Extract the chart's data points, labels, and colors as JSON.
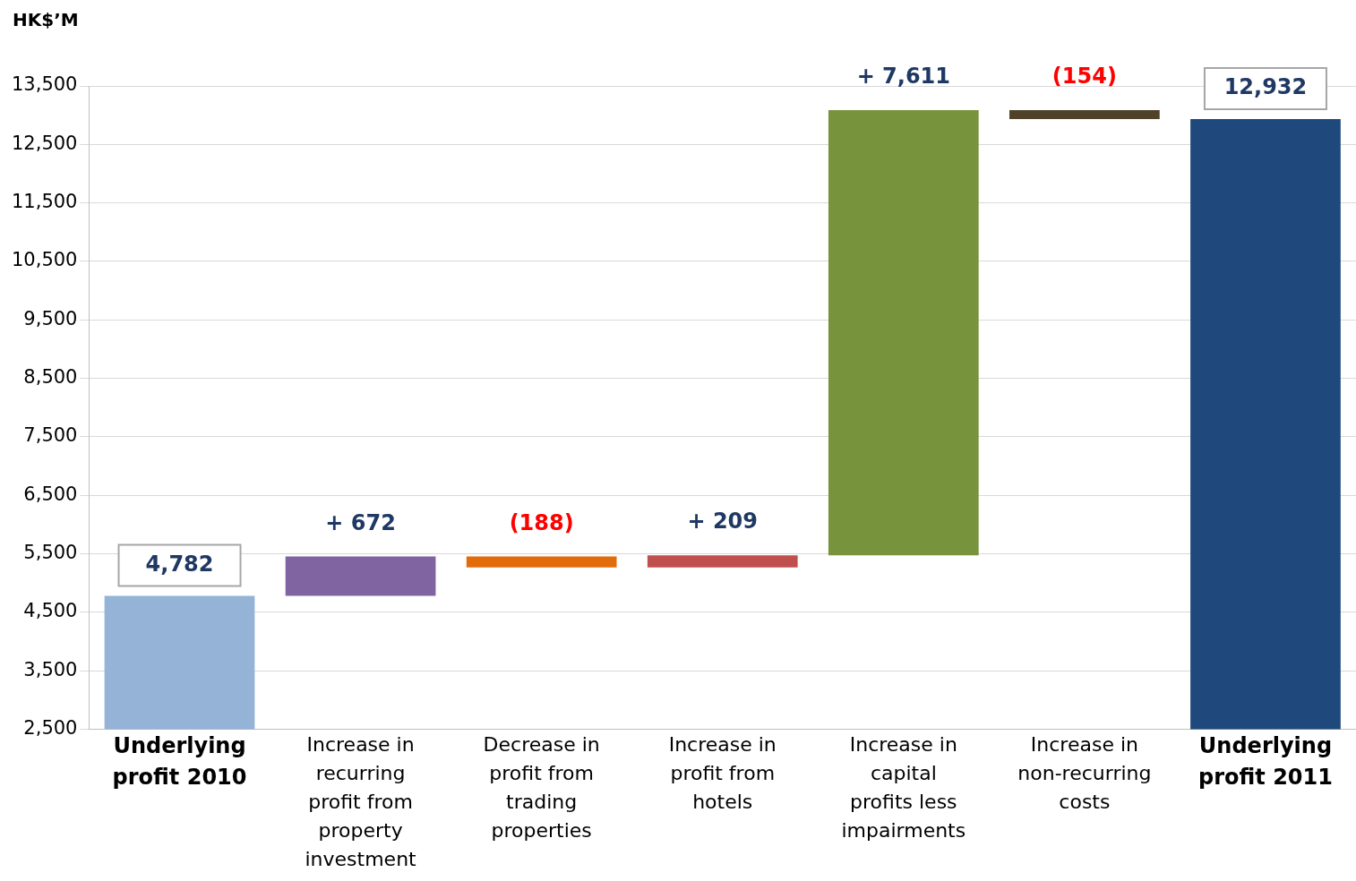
{
  "chart_data": {
    "type": "bar",
    "ylabel": "HK$’M",
    "categories": [
      "Underlying profit 2010",
      "Increase in recurring profit from property investment",
      "Decrease in profit from trading properties",
      "Increase in profit from hotels",
      "Increase in capital profits less impairments",
      "Increase in non-recurring costs",
      "Underlying profit 2011"
    ],
    "values": [
      4782,
      672,
      -188,
      209,
      7611,
      -154,
      12932
    ],
    "base": [
      null,
      4782,
      5454,
      5266,
      5475,
      13086,
      null
    ],
    "colors": [
      "#95b3d7",
      "#8064a2",
      "#e36c0a",
      "#c0504d",
      "#77933c",
      "#4f4228",
      "#1f497d"
    ],
    "value_labels": [
      "4,782",
      "+ 672",
      "(188)",
      "+ 209",
      "+ 7,611",
      "(154)",
      "12,932"
    ],
    "ylim": [
      2500,
      13500
    ],
    "yticks": [
      {
        "value": 2500,
        "label": "2,500"
      },
      {
        "value": 3500,
        "label": "3,500"
      },
      {
        "value": 4500,
        "label": "4,500"
      },
      {
        "value": 5500,
        "label": "5,500"
      },
      {
        "value": 6500,
        "label": "6,500"
      },
      {
        "value": 7500,
        "label": "7,500"
      },
      {
        "value": 8500,
        "label": "8,500"
      },
      {
        "value": 9500,
        "label": "9,500"
      },
      {
        "value": 10500,
        "label": "10,500"
      },
      {
        "value": 11500,
        "label": "11,500"
      },
      {
        "value": 12500,
        "label": "12,500"
      },
      {
        "value": 13500,
        "label": "13,500"
      }
    ],
    "grid": "y",
    "legend": false
  }
}
